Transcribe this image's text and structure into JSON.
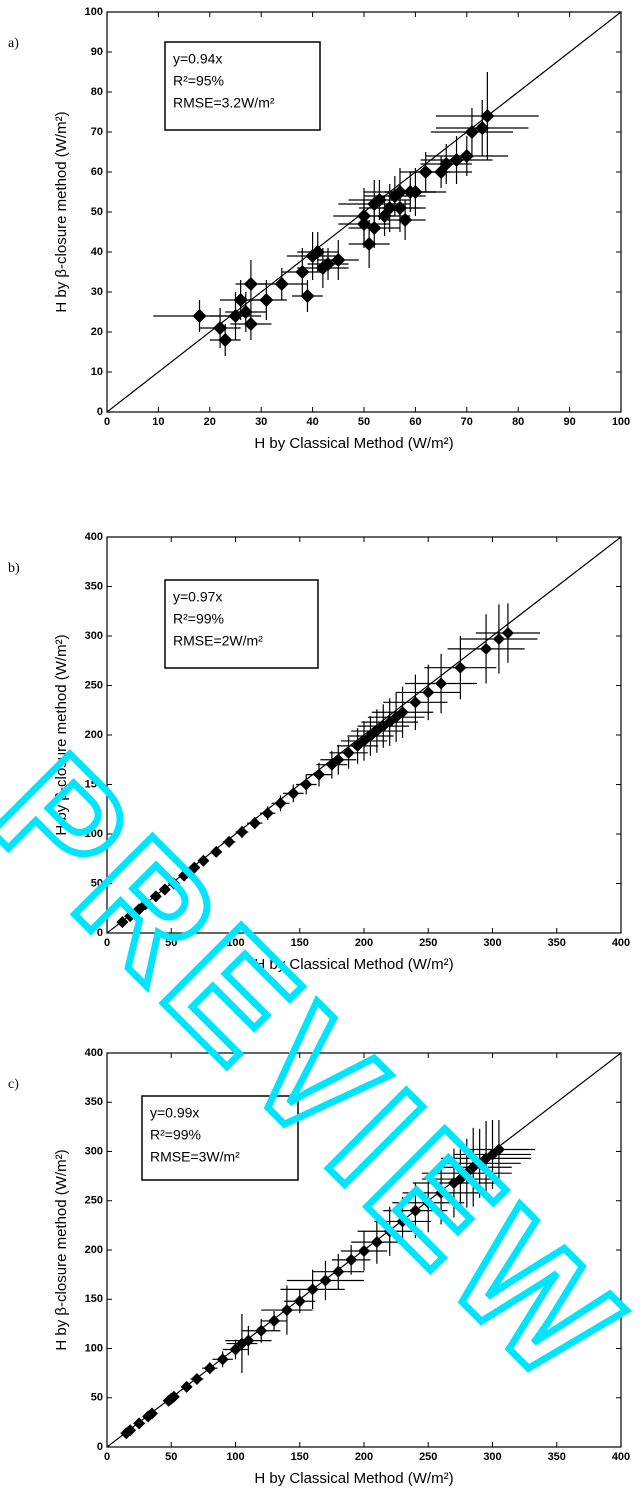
{
  "watermark": "PREVIEW",
  "chart_data": [
    {
      "type": "scatter",
      "panel_label": "a)",
      "xlabel": "H by Classical Method (W/m²)",
      "ylabel": "H by β-closure method (W/m²)",
      "annotations": [
        "y=0.94x",
        "R²=95%",
        "RMSE=3.2W/m²"
      ],
      "xlim": [
        0,
        100
      ],
      "ylim": [
        0,
        100
      ],
      "xticks": [
        0,
        10,
        20,
        30,
        40,
        50,
        60,
        70,
        80,
        90,
        100
      ],
      "yticks": [
        0,
        10,
        20,
        30,
        40,
        50,
        60,
        70,
        80,
        90,
        100
      ],
      "color": "#000000",
      "x": [
        18,
        22,
        23,
        25,
        26,
        27,
        28,
        28,
        31,
        34,
        38,
        39,
        40,
        41,
        42,
        43,
        45,
        50,
        50,
        51,
        52,
        52,
        53,
        54,
        55,
        56,
        57,
        57,
        58,
        59,
        60,
        62,
        65,
        66,
        68,
        70,
        71,
        73,
        74
      ],
      "y": [
        24,
        21,
        18,
        24,
        28,
        25,
        32,
        22,
        28,
        32,
        35,
        29,
        39,
        40,
        36,
        37,
        38,
        49,
        47,
        42,
        46,
        52,
        53,
        49,
        51,
        54,
        51,
        55,
        48,
        55,
        55,
        60,
        60,
        62,
        63,
        64,
        70,
        71,
        74
      ],
      "xerr": [
        9,
        4,
        3,
        5,
        4,
        4,
        3,
        4,
        4,
        5,
        4,
        3,
        5,
        4,
        5,
        4,
        4,
        6,
        5,
        4,
        5,
        7,
        6,
        5,
        6,
        6,
        5,
        7,
        4,
        5,
        6,
        5,
        6,
        5,
        7,
        8,
        8,
        9,
        10
      ],
      "yerr": [
        4,
        5,
        4,
        6,
        5,
        5,
        6,
        4,
        5,
        4,
        6,
        4,
        6,
        5,
        5,
        4,
        5,
        7,
        6,
        6,
        5,
        6,
        5,
        5,
        6,
        5,
        6,
        6,
        5,
        5,
        6,
        5,
        4,
        5,
        6,
        5,
        6,
        7,
        11
      ]
    },
    {
      "type": "scatter",
      "panel_label": "b)",
      "xlabel": "H by Classical Method (W/m²)",
      "ylabel": "H by β-closure method (W/m²)",
      "annotations": [
        "y=0.97x",
        "R²=99%",
        "RMSE=2W/m²"
      ],
      "xlim": [
        0,
        400
      ],
      "ylim": [
        0,
        400
      ],
      "xticks": [
        0,
        50,
        100,
        150,
        200,
        250,
        300,
        350,
        400
      ],
      "yticks": [
        0,
        50,
        100,
        150,
        200,
        250,
        300,
        350,
        400
      ],
      "color": "#000000",
      "x": [
        12,
        18,
        25,
        30,
        38,
        45,
        52,
        60,
        68,
        75,
        85,
        95,
        105,
        115,
        125,
        135,
        145,
        155,
        165,
        175,
        180,
        188,
        195,
        200,
        205,
        210,
        215,
        220,
        225,
        230,
        240,
        250,
        260,
        275,
        295,
        305,
        312
      ],
      "y": [
        11,
        17,
        24,
        29,
        37,
        44,
        50,
        58,
        66,
        73,
        82,
        92,
        102,
        111,
        121,
        131,
        141,
        150,
        160,
        170,
        175,
        182,
        189,
        194,
        199,
        204,
        209,
        213,
        218,
        223,
        233,
        243,
        252,
        268,
        287,
        297,
        303
      ],
      "xerr": [
        1,
        1,
        1,
        2,
        2,
        2,
        3,
        3,
        3,
        4,
        4,
        5,
        5,
        6,
        6,
        7,
        8,
        8,
        10,
        12,
        14,
        15,
        16,
        18,
        18,
        20,
        20,
        22,
        22,
        24,
        25,
        25,
        28,
        28,
        30,
        30,
        25
      ],
      "yerr": [
        1,
        1,
        1,
        2,
        2,
        2,
        3,
        3,
        4,
        4,
        5,
        5,
        6,
        6,
        7,
        8,
        9,
        10,
        12,
        14,
        15,
        16,
        18,
        20,
        20,
        22,
        22,
        24,
        25,
        26,
        28,
        28,
        30,
        32,
        35,
        35,
        30
      ]
    },
    {
      "type": "scatter",
      "panel_label": "c)",
      "xlabel": "H by Classical Method (W/m²)",
      "ylabel": "H by β-closure method (W/m²)",
      "annotations": [
        "y=0.99x",
        "R²=99%",
        "RMSE=3W/m²"
      ],
      "xlim": [
        0,
        400
      ],
      "ylim": [
        0,
        400
      ],
      "xticks": [
        0,
        50,
        100,
        150,
        200,
        250,
        300,
        350,
        400
      ],
      "yticks": [
        0,
        50,
        100,
        150,
        200,
        250,
        300,
        350,
        400
      ],
      "color": "#000000",
      "x": [
        15,
        18,
        25,
        32,
        35,
        48,
        50,
        52,
        62,
        70,
        80,
        90,
        100,
        105,
        110,
        120,
        130,
        140,
        150,
        160,
        170,
        180,
        190,
        200,
        210,
        220,
        230,
        240,
        250,
        260,
        270,
        275,
        280,
        285,
        290,
        295,
        300,
        305
      ],
      "y": [
        14,
        17,
        24,
        31,
        34,
        47,
        49,
        51,
        61,
        69,
        80,
        89,
        99,
        105,
        108,
        118,
        128,
        139,
        148,
        160,
        169,
        178,
        190,
        199,
        208,
        219,
        229,
        240,
        248,
        258,
        268,
        272,
        278,
        284,
        288,
        293,
        297,
        302
      ],
      "xerr": [
        2,
        2,
        2,
        3,
        3,
        3,
        3,
        4,
        4,
        5,
        6,
        8,
        10,
        12,
        18,
        15,
        10,
        20,
        12,
        25,
        30,
        20,
        15,
        18,
        20,
        25,
        22,
        25,
        28,
        30,
        32,
        30,
        35,
        30,
        32,
        35,
        30,
        28
      ],
      "yerr": [
        2,
        2,
        2,
        3,
        3,
        3,
        3,
        4,
        4,
        5,
        6,
        8,
        10,
        30,
        15,
        12,
        10,
        25,
        12,
        20,
        20,
        18,
        15,
        20,
        22,
        25,
        25,
        28,
        30,
        32,
        35,
        30,
        35,
        40,
        35,
        38,
        35,
        30
      ]
    }
  ]
}
